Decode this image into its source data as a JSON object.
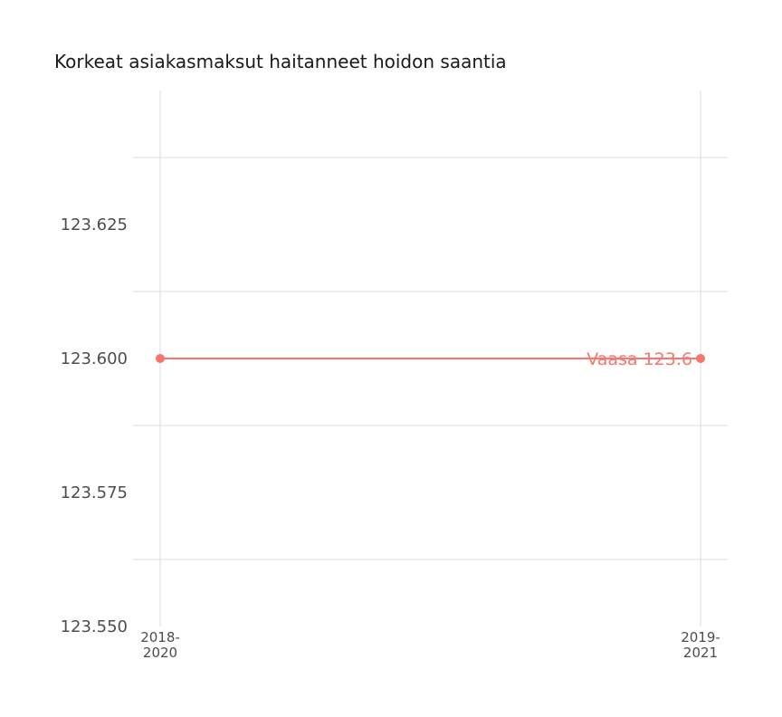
{
  "chart_data": {
    "type": "line",
    "title": "Korkeat asiakasmaksut haitanneet hoidon saantia",
    "xlabel": "",
    "ylabel": "",
    "categories": [
      [
        "2018-",
        "2020"
      ],
      [
        "2019-",
        "2021"
      ]
    ],
    "series": [
      {
        "name": "Vaasa",
        "values": [
          123.6,
          123.6
        ],
        "color": "#f8766d",
        "end_label": "Vaasa 123.6"
      }
    ],
    "y_ticks": [
      "123.550",
      "123.575",
      "123.600",
      "123.625"
    ],
    "ylim": [
      123.55,
      123.65
    ],
    "grid": true,
    "legend": "none"
  }
}
